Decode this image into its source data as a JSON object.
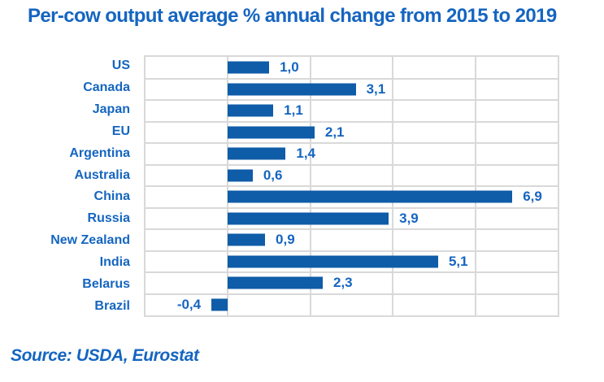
{
  "title": "Per-cow output average % annual change from 2015 to 2019",
  "source": {
    "text": "Source: USDA, Eurostat"
  },
  "colors": {
    "text_blue": "#1565C0",
    "bar_blue": "#0F5CA8",
    "gridline_gray": "#D9D9D9",
    "background": "#FFFFFF"
  },
  "chart_data": {
    "type": "bar",
    "orientation": "horizontal",
    "title": "Per-cow output average % annual change from 2015 to 2019",
    "categories": [
      "US",
      "Canada",
      "Japan",
      "EU",
      "Argentina",
      "Australia",
      "China",
      "Russia",
      "New Zealand",
      "India",
      "Belarus",
      "Brazil"
    ],
    "values": [
      1.0,
      3.1,
      1.1,
      2.1,
      1.4,
      0.6,
      6.9,
      3.9,
      0.9,
      5.1,
      2.3,
      -0.4
    ],
    "value_labels": [
      "1,0",
      "3,1",
      "1,1",
      "2,1",
      "1,4",
      "0,6",
      "6,9",
      "3,9",
      "0,9",
      "5,1",
      "2,3",
      "-0,4"
    ],
    "xlabel": "",
    "ylabel": "",
    "xlim": [
      -2,
      8
    ],
    "gridline_step": 2,
    "grid": true,
    "tick_labels_shown": false,
    "legend": "none",
    "decimal_separator": ","
  }
}
